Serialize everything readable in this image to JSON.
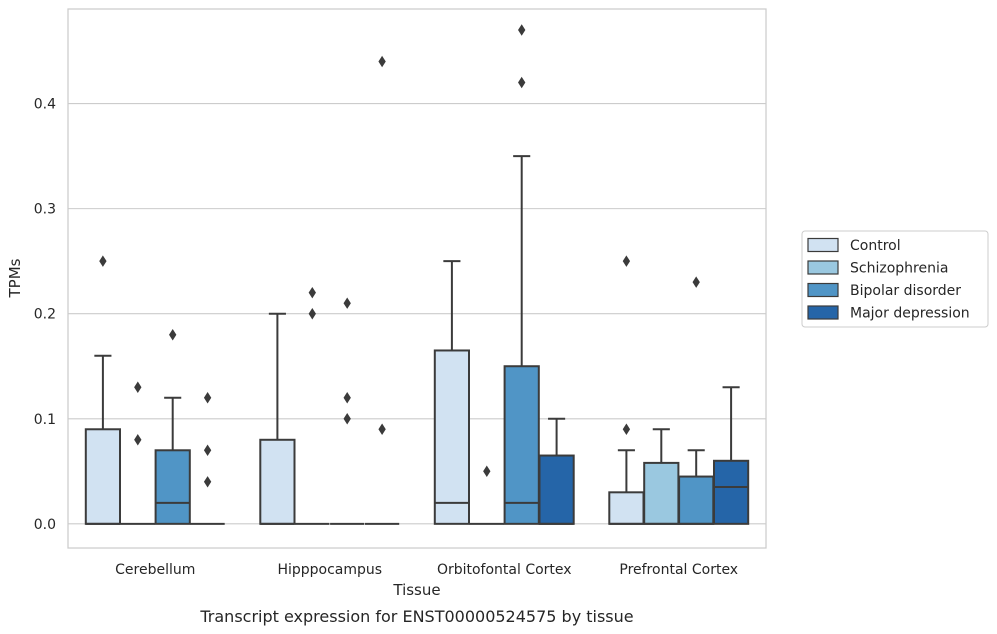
{
  "chart_data": {
    "type": "boxplot",
    "caption": "Transcript expression for ENST00000524575 by tissue",
    "xlabel": "Tissue",
    "ylabel": "TPMs",
    "ylim": [
      -0.023,
      0.49
    ],
    "yticks": [
      0.0,
      0.1,
      0.2,
      0.3,
      0.4
    ],
    "ytick_labels": [
      "0.0",
      "0.1",
      "0.2",
      "0.3",
      "0.4"
    ],
    "grid": "horizontal",
    "legend_position": "right",
    "categories": [
      "Cerebellum",
      "Hipppocampus",
      "Orbitofontal Cortex",
      "Prefrontal Cortex"
    ],
    "series": [
      {
        "name": "Control",
        "color": "#d1e2f2",
        "boxes": [
          {
            "q1": 0.0,
            "median": 0.0,
            "q3": 0.09,
            "whisker_low": 0.0,
            "whisker_high": 0.16,
            "outliers": [
              0.25
            ]
          },
          {
            "q1": 0.0,
            "median": 0.0,
            "q3": 0.08,
            "whisker_low": 0.0,
            "whisker_high": 0.2,
            "outliers": []
          },
          {
            "q1": 0.0,
            "median": 0.02,
            "q3": 0.165,
            "whisker_low": 0.0,
            "whisker_high": 0.25,
            "outliers": []
          },
          {
            "q1": 0.0,
            "median": 0.0,
            "q3": 0.03,
            "whisker_low": 0.0,
            "whisker_high": 0.07,
            "outliers": [
              0.09,
              0.25
            ]
          }
        ]
      },
      {
        "name": "Schizophrenia",
        "color": "#9ac8e0",
        "boxes": [
          {
            "q1": 0.0,
            "median": 0.0,
            "q3": 0.0,
            "whisker_low": 0.0,
            "whisker_high": 0.0,
            "outliers": [
              0.08,
              0.13
            ]
          },
          {
            "q1": 0.0,
            "median": 0.0,
            "q3": 0.0,
            "whisker_low": 0.0,
            "whisker_high": 0.0,
            "outliers": [
              0.2,
              0.22
            ]
          },
          {
            "q1": 0.0,
            "median": 0.0,
            "q3": 0.0,
            "whisker_low": 0.0,
            "whisker_high": 0.0,
            "outliers": [
              0.05
            ]
          },
          {
            "q1": 0.0,
            "median": 0.0,
            "q3": 0.058,
            "whisker_low": 0.0,
            "whisker_high": 0.09,
            "outliers": []
          }
        ]
      },
      {
        "name": "Bipolar disorder",
        "color": "#5095c6",
        "boxes": [
          {
            "q1": 0.0,
            "median": 0.02,
            "q3": 0.07,
            "whisker_low": 0.0,
            "whisker_high": 0.12,
            "outliers": [
              0.18
            ]
          },
          {
            "q1": 0.0,
            "median": 0.0,
            "q3": 0.0,
            "whisker_low": 0.0,
            "whisker_high": 0.0,
            "outliers": [
              0.1,
              0.12,
              0.21
            ]
          },
          {
            "q1": 0.0,
            "median": 0.02,
            "q3": 0.15,
            "whisker_low": 0.0,
            "whisker_high": 0.35,
            "outliers": [
              0.42,
              0.47
            ]
          },
          {
            "q1": 0.0,
            "median": 0.0,
            "q3": 0.045,
            "whisker_low": 0.0,
            "whisker_high": 0.07,
            "outliers": [
              0.23
            ]
          }
        ]
      },
      {
        "name": "Major depression",
        "color": "#2565a8",
        "boxes": [
          {
            "q1": 0.0,
            "median": 0.0,
            "q3": 0.0,
            "whisker_low": 0.0,
            "whisker_high": 0.0,
            "outliers": [
              0.04,
              0.07,
              0.12
            ]
          },
          {
            "q1": 0.0,
            "median": 0.0,
            "q3": 0.0,
            "whisker_low": 0.0,
            "whisker_high": 0.0,
            "outliers": [
              0.09,
              0.44
            ]
          },
          {
            "q1": 0.0,
            "median": 0.0,
            "q3": 0.065,
            "whisker_low": 0.0,
            "whisker_high": 0.1,
            "outliers": []
          },
          {
            "q1": 0.0,
            "median": 0.035,
            "q3": 0.06,
            "whisker_low": 0.0,
            "whisker_high": 0.13,
            "outliers": []
          }
        ]
      }
    ]
  }
}
